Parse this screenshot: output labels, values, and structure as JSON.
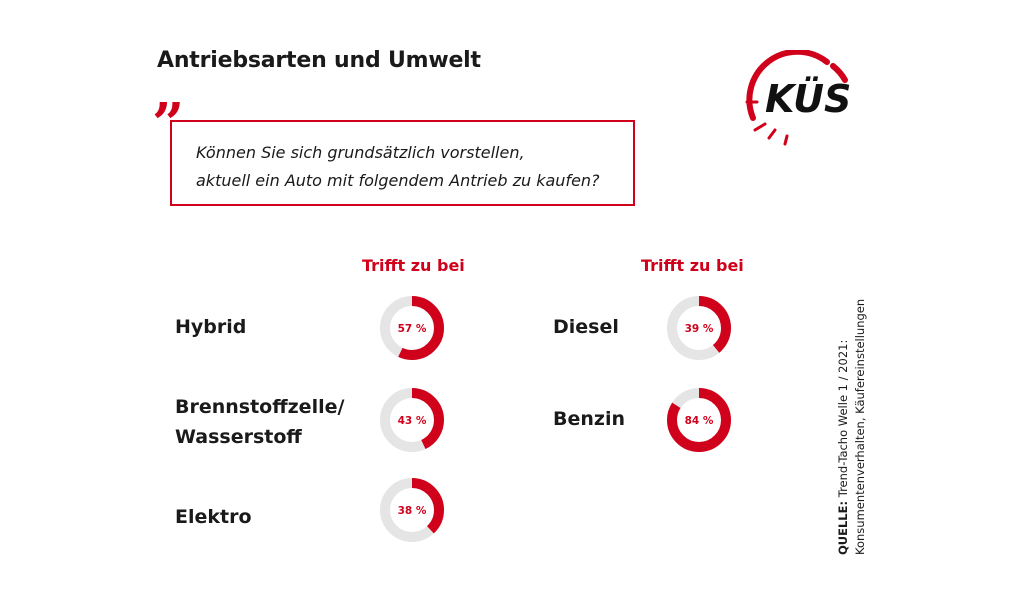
{
  "title": "Antriebsarten und Umwelt",
  "logo_text": "KÜS",
  "question": {
    "line1": "Können Sie sich grundsätzlich vorstellen,",
    "line2": "aktuell ein Auto mit folgendem Antrieb zu kaufen?"
  },
  "colors": {
    "accent": "#d0021b",
    "track": "#e5e5e5"
  },
  "chart_data": {
    "type": "pie",
    "column_header": "Trifft zu bei",
    "items": [
      {
        "label": "Hybrid",
        "value": 57,
        "display": "57 %"
      },
      {
        "label_line1": "Brennstoffzelle/",
        "label_line2": "Wasserstoff",
        "value": 43,
        "display": "43 %"
      },
      {
        "label": "Elektro",
        "value": 38,
        "display": "38 %"
      },
      {
        "label": "Diesel",
        "value": 39,
        "display": "39 %"
      },
      {
        "label": "Benzin",
        "value": 84,
        "display": "84 %"
      }
    ]
  },
  "source": {
    "label": "QUELLE:",
    "line1": "Trend-Tacho Welle 1 / 2021:",
    "line2": "Konsumentenverhalten, Käufereinstellungen"
  }
}
